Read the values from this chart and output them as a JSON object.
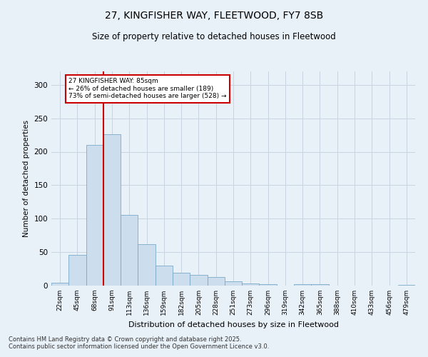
{
  "title_line1": "27, KINGFISHER WAY, FLEETWOOD, FY7 8SB",
  "title_line2": "Size of property relative to detached houses in Fleetwood",
  "xlabel": "Distribution of detached houses by size in Fleetwood",
  "ylabel": "Number of detached properties",
  "bin_labels": [
    "22sqm",
    "45sqm",
    "68sqm",
    "91sqm",
    "113sqm",
    "136sqm",
    "159sqm",
    "182sqm",
    "205sqm",
    "228sqm",
    "251sqm",
    "273sqm",
    "296sqm",
    "319sqm",
    "342sqm",
    "365sqm",
    "388sqm",
    "410sqm",
    "433sqm",
    "456sqm",
    "479sqm"
  ],
  "bar_values": [
    4,
    46,
    210,
    226,
    106,
    62,
    30,
    19,
    16,
    13,
    6,
    3,
    2,
    0,
    2,
    2,
    0,
    0,
    0,
    0,
    1
  ],
  "bar_color": "#ccdded",
  "bar_edge_color": "#7aaac8",
  "vline_color": "#cc0000",
  "annotation_text": "27 KINGFISHER WAY: 85sqm\n← 26% of detached houses are smaller (189)\n73% of semi-detached houses are larger (528) →",
  "annotation_box_color": "#ffffff",
  "annotation_box_edge": "#cc0000",
  "grid_color": "#c8d4e0",
  "bg_color": "#e8f0f8",
  "footer_line1": "Contains HM Land Registry data © Crown copyright and database right 2025.",
  "footer_line2": "Contains public sector information licensed under the Open Government Licence v3.0.",
  "ylim": [
    0,
    320
  ],
  "yticks": [
    0,
    50,
    100,
    150,
    200,
    250,
    300
  ]
}
